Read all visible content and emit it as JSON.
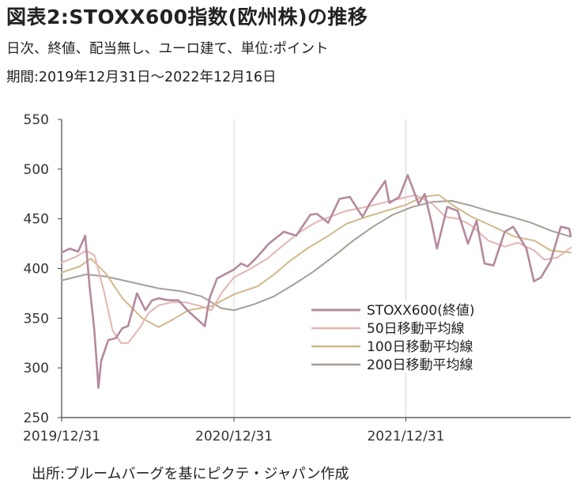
{
  "header": {
    "title": "図表2:STOXX600指数(欧州株)の推移",
    "subtitle": "日次、終値、配当無し、ユーロ建て、単位:ポイント",
    "period": "期間:2019年12月31日〜2022年12月16日"
  },
  "footer": {
    "source": "出所:ブルームバーグを基にピクテ・ジャパン作成"
  },
  "chart_data": {
    "type": "line",
    "ylim": [
      250,
      550
    ],
    "yticks": [
      550,
      500,
      450,
      400,
      350,
      300,
      250
    ],
    "xlim": [
      "2019-12-31",
      "2022-12-16"
    ],
    "xticks": [
      "2019/12/31",
      "2020/12/31",
      "2021/12/31"
    ],
    "grid": "vertical",
    "legend": "center-right",
    "series": [
      {
        "name": "STOXX600(終値)",
        "color": "#b48a9f",
        "points": [
          [
            "2019-12-31",
            416
          ],
          [
            "2020-01-17",
            420
          ],
          [
            "2020-02-04",
            417
          ],
          [
            "2020-02-19",
            433
          ],
          [
            "2020-02-28",
            384
          ],
          [
            "2020-03-09",
            340
          ],
          [
            "2020-03-16",
            295
          ],
          [
            "2020-03-18",
            280
          ],
          [
            "2020-03-24",
            307
          ],
          [
            "2020-04-08",
            328
          ],
          [
            "2020-04-24",
            330
          ],
          [
            "2020-05-08",
            340
          ],
          [
            "2020-05-20",
            342
          ],
          [
            "2020-06-08",
            375
          ],
          [
            "2020-06-26",
            358
          ],
          [
            "2020-07-10",
            368
          ],
          [
            "2020-07-24",
            370
          ],
          [
            "2020-08-14",
            368
          ],
          [
            "2020-09-04",
            368
          ],
          [
            "2020-09-25",
            357
          ],
          [
            "2020-10-30",
            342
          ],
          [
            "2020-11-09",
            370
          ],
          [
            "2020-11-25",
            390
          ],
          [
            "2020-12-31",
            399
          ],
          [
            "2021-01-15",
            405
          ],
          [
            "2021-01-29",
            402
          ],
          [
            "2021-02-19",
            412
          ],
          [
            "2021-03-15",
            425
          ],
          [
            "2021-04-16",
            437
          ],
          [
            "2021-05-12",
            433
          ],
          [
            "2021-06-11",
            454
          ],
          [
            "2021-06-25",
            455
          ],
          [
            "2021-07-19",
            446
          ],
          [
            "2021-08-12",
            470
          ],
          [
            "2021-09-03",
            472
          ],
          [
            "2021-09-30",
            452
          ],
          [
            "2021-10-15",
            465
          ],
          [
            "2021-11-17",
            488
          ],
          [
            "2021-11-26",
            466
          ],
          [
            "2021-12-17",
            472
          ],
          [
            "2022-01-04",
            494
          ],
          [
            "2022-01-27",
            465
          ],
          [
            "2022-02-09",
            475
          ],
          [
            "2022-02-24",
            445
          ],
          [
            "2022-03-07",
            420
          ],
          [
            "2022-03-29",
            462
          ],
          [
            "2022-04-20",
            458
          ],
          [
            "2022-05-12",
            425
          ],
          [
            "2022-05-30",
            448
          ],
          [
            "2022-06-16",
            405
          ],
          [
            "2022-07-05",
            403
          ],
          [
            "2022-07-29",
            437
          ],
          [
            "2022-08-16",
            442
          ],
          [
            "2022-09-13",
            420
          ],
          [
            "2022-09-29",
            387
          ],
          [
            "2022-10-14",
            391
          ],
          [
            "2022-11-03",
            407
          ],
          [
            "2022-11-25",
            442
          ],
          [
            "2022-12-13",
            440
          ],
          [
            "2022-12-16",
            433
          ]
        ]
      },
      {
        "name": "50日移動平均線",
        "color": "#e2b6b2",
        "points": [
          [
            "2019-12-31",
            406
          ],
          [
            "2020-01-31",
            412
          ],
          [
            "2020-02-21",
            418
          ],
          [
            "2020-03-10",
            413
          ],
          [
            "2020-03-31",
            375
          ],
          [
            "2020-04-17",
            338
          ],
          [
            "2020-05-05",
            325
          ],
          [
            "2020-05-20",
            325
          ],
          [
            "2020-06-15",
            341
          ],
          [
            "2020-07-02",
            355
          ],
          [
            "2020-07-24",
            363
          ],
          [
            "2020-08-21",
            366
          ],
          [
            "2020-09-18",
            366
          ],
          [
            "2020-10-23",
            362
          ],
          [
            "2020-11-13",
            358
          ],
          [
            "2020-12-04",
            375
          ],
          [
            "2020-12-31",
            391
          ],
          [
            "2021-02-05",
            400
          ],
          [
            "2021-03-12",
            410
          ],
          [
            "2021-04-16",
            424
          ],
          [
            "2021-05-21",
            437
          ],
          [
            "2021-06-25",
            447
          ],
          [
            "2021-07-23",
            452
          ],
          [
            "2021-08-27",
            458
          ],
          [
            "2021-10-08",
            462
          ],
          [
            "2021-11-19",
            467
          ],
          [
            "2021-12-17",
            470
          ],
          [
            "2022-01-21",
            474
          ],
          [
            "2022-02-25",
            465
          ],
          [
            "2022-03-25",
            452
          ],
          [
            "2022-04-22",
            450
          ],
          [
            "2022-05-20",
            443
          ],
          [
            "2022-06-24",
            428
          ],
          [
            "2022-07-29",
            422
          ],
          [
            "2022-08-26",
            426
          ],
          [
            "2022-09-30",
            418
          ],
          [
            "2022-10-21",
            409
          ],
          [
            "2022-11-18",
            411
          ],
          [
            "2022-12-16",
            421
          ]
        ]
      },
      {
        "name": "100日移動平均線",
        "color": "#d1b88a",
        "points": [
          [
            "2019-12-31",
            396
          ],
          [
            "2020-02-07",
            402
          ],
          [
            "2020-03-02",
            410
          ],
          [
            "2020-04-03",
            395
          ],
          [
            "2020-05-08",
            370
          ],
          [
            "2020-06-19",
            350
          ],
          [
            "2020-07-24",
            341
          ],
          [
            "2020-08-21",
            348
          ],
          [
            "2020-09-25",
            358
          ],
          [
            "2020-11-13",
            362
          ],
          [
            "2020-12-31",
            374
          ],
          [
            "2021-02-19",
            382
          ],
          [
            "2021-03-26",
            394
          ],
          [
            "2021-04-30",
            408
          ],
          [
            "2021-06-04",
            420
          ],
          [
            "2021-07-16",
            432
          ],
          [
            "2021-08-27",
            445
          ],
          [
            "2021-10-08",
            452
          ],
          [
            "2021-11-19",
            458
          ],
          [
            "2021-12-31",
            464
          ],
          [
            "2022-02-04",
            472
          ],
          [
            "2022-03-11",
            474
          ],
          [
            "2022-04-15",
            462
          ],
          [
            "2022-05-20",
            452
          ],
          [
            "2022-07-01",
            443
          ],
          [
            "2022-08-19",
            432
          ],
          [
            "2022-09-30",
            428
          ],
          [
            "2022-11-04",
            418
          ],
          [
            "2022-12-16",
            416
          ]
        ]
      },
      {
        "name": "200日移動平均線",
        "color": "#a79e97",
        "points": [
          [
            "2019-12-31",
            388
          ],
          [
            "2020-02-21",
            394
          ],
          [
            "2020-04-03",
            392
          ],
          [
            "2020-05-29",
            386
          ],
          [
            "2020-07-24",
            380
          ],
          [
            "2020-09-11",
            377
          ],
          [
            "2020-10-23",
            372
          ],
          [
            "2020-12-04",
            360
          ],
          [
            "2020-12-31",
            358
          ],
          [
            "2021-02-12",
            364
          ],
          [
            "2021-03-26",
            372
          ],
          [
            "2021-05-07",
            384
          ],
          [
            "2021-06-18",
            397
          ],
          [
            "2021-07-30",
            412
          ],
          [
            "2021-09-10",
            428
          ],
          [
            "2021-10-22",
            442
          ],
          [
            "2021-12-03",
            454
          ],
          [
            "2022-01-14",
            462
          ],
          [
            "2022-02-25",
            467
          ],
          [
            "2022-04-08",
            468
          ],
          [
            "2022-05-20",
            463
          ],
          [
            "2022-07-01",
            457
          ],
          [
            "2022-08-12",
            452
          ],
          [
            "2022-09-23",
            446
          ],
          [
            "2022-11-04",
            438
          ],
          [
            "2022-12-16",
            432
          ]
        ]
      }
    ]
  }
}
